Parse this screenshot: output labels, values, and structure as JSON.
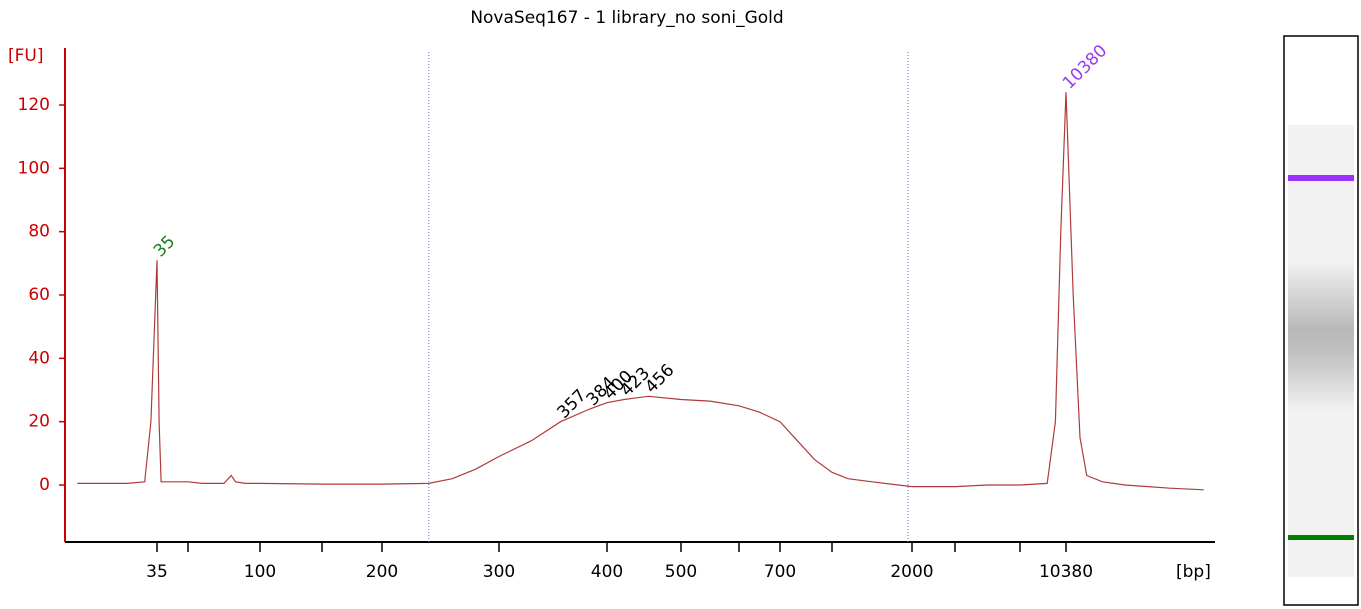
{
  "chart_data": {
    "type": "line",
    "title": "NovaSeq167 - 1 library_no soni_Gold",
    "y_label": "[FU]",
    "x_label": "[bp]",
    "xlim": [
      20,
      17000
    ],
    "xticks": [
      35,
      {
        "value": 50,
        "label": null
      },
      100,
      {
        "value": 150,
        "label": null
      },
      200,
      300,
      400,
      500,
      {
        "value": 600,
        "label": null
      },
      700,
      {
        "value": 1000,
        "label": null
      },
      2000,
      {
        "value": 3000,
        "label": null
      },
      {
        "value": 7000,
        "label": null
      },
      10380
    ],
    "ylim": [
      -18,
      138
    ],
    "yticks": [
      0,
      20,
      40,
      60,
      80,
      100,
      120
    ],
    "grid": false,
    "region": [
      240,
      1950
    ],
    "series": [
      {
        "color": "#b03a3a",
        "x": [
          22,
          30,
          33,
          34,
          35,
          36,
          37,
          40,
          50,
          60,
          75,
          80,
          83,
          90,
          100,
          150,
          200,
          240,
          260,
          280,
          300,
          330,
          357,
          384,
          400,
          423,
          456,
          500,
          550,
          600,
          650,
          700,
          800,
          900,
          1000,
          1200,
          1500,
          2000,
          3000,
          5000,
          7000,
          9000,
          9600,
          10000,
          10380,
          10700,
          11000,
          11300,
          12000,
          13000,
          15000,
          16500
        ],
        "values": [
          0.5,
          0.5,
          1,
          20,
          71,
          20,
          1,
          1,
          1,
          0.5,
          0.5,
          3,
          1,
          0.5,
          0.5,
          0.3,
          0.3,
          0.5,
          2,
          5,
          9,
          14,
          20,
          24,
          26,
          27,
          28,
          27,
          26.5,
          25,
          23,
          20,
          14,
          8,
          4,
          2,
          1,
          -0.5,
          -0.5,
          0,
          0,
          0.5,
          20,
          80,
          124,
          60,
          15,
          3,
          1,
          0,
          -1,
          -1.5
        ]
      }
    ],
    "peaks": [
      {
        "x": 35,
        "y": 71,
        "color": "#1a7f1a"
      },
      {
        "x": 357,
        "y": 20,
        "color": "#000000"
      },
      {
        "x": 384,
        "y": 24,
        "color": "#000000"
      },
      {
        "x": 400,
        "y": 26,
        "color": "#000000"
      },
      {
        "x": 423,
        "y": 27,
        "color": "#000000"
      },
      {
        "x": 456,
        "y": 28,
        "color": "#000000"
      },
      {
        "x": 10380,
        "y": 124,
        "color": "#9b3cf0"
      }
    ]
  }
}
